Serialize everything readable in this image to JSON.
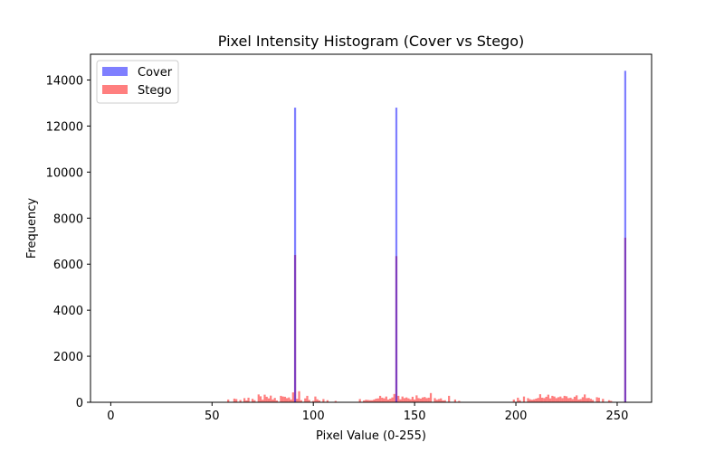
{
  "chart_data": {
    "type": "bar",
    "title": "Pixel Intensity Histogram (Cover vs Stego)",
    "xlabel": "Pixel Value (0-255)",
    "ylabel": "Frequency",
    "xlim": [
      -10,
      267
    ],
    "ylim": [
      0,
      15120
    ],
    "xticks": [
      0,
      50,
      100,
      150,
      200,
      250
    ],
    "yticks": [
      0,
      2000,
      4000,
      6000,
      8000,
      10000,
      12000,
      14000
    ],
    "legend_position": "top-left",
    "grid": false,
    "bin_width": 1,
    "series": [
      {
        "name": "Cover",
        "color": "#0000ff",
        "opacity": 0.5,
        "x": [
          91,
          141,
          254
        ],
        "values": [
          12800,
          12800,
          14400
        ]
      },
      {
        "name": "Stego",
        "color": "#ff0000",
        "opacity": 0.5,
        "x": [
          58,
          61,
          62,
          64,
          66,
          67,
          68,
          70,
          71,
          73,
          74,
          75,
          76,
          77,
          78,
          79,
          80,
          81,
          82,
          84,
          85,
          86,
          87,
          88,
          89,
          90,
          91,
          92,
          93,
          94,
          96,
          97,
          98,
          100,
          101,
          102,
          103,
          105,
          107,
          111,
          123,
          125,
          126,
          127,
          128,
          129,
          130,
          131,
          132,
          133,
          134,
          135,
          136,
          137,
          138,
          139,
          140,
          141,
          142,
          143,
          144,
          145,
          146,
          147,
          148,
          149,
          150,
          151,
          152,
          153,
          154,
          155,
          156,
          157,
          158,
          160,
          161,
          162,
          163,
          164,
          165,
          167,
          170,
          172,
          199,
          201,
          202,
          204,
          206,
          207,
          208,
          209,
          210,
          211,
          212,
          213,
          214,
          215,
          216,
          217,
          218,
          219,
          220,
          221,
          222,
          223,
          224,
          225,
          226,
          227,
          228,
          229,
          230,
          231,
          232,
          233,
          234,
          235,
          236,
          237,
          238,
          240,
          241,
          243,
          246,
          247,
          254
        ],
        "values": [
          120,
          160,
          140,
          100,
          180,
          80,
          200,
          150,
          90,
          340,
          260,
          110,
          330,
          240,
          170,
          290,
          120,
          190,
          80,
          280,
          250,
          240,
          180,
          210,
          120,
          430,
          6400,
          150,
          480,
          90,
          170,
          280,
          100,
          60,
          250,
          130,
          80,
          140,
          90,
          60,
          140,
          80,
          110,
          100,
          90,
          90,
          120,
          160,
          170,
          280,
          200,
          170,
          250,
          120,
          160,
          210,
          360,
          6350,
          280,
          130,
          250,
          180,
          210,
          170,
          130,
          240,
          120,
          300,
          180,
          160,
          210,
          230,
          180,
          200,
          400,
          180,
          110,
          140,
          170,
          80,
          90,
          280,
          120,
          60,
          120,
          200,
          90,
          250,
          180,
          130,
          110,
          130,
          160,
          190,
          350,
          200,
          180,
          240,
          330,
          170,
          280,
          250,
          180,
          220,
          250,
          180,
          280,
          260,
          180,
          200,
          140,
          240,
          300,
          120,
          140,
          220,
          340,
          180,
          190,
          150,
          100,
          220,
          200,
          150,
          90,
          60,
          7150
        ]
      }
    ]
  }
}
